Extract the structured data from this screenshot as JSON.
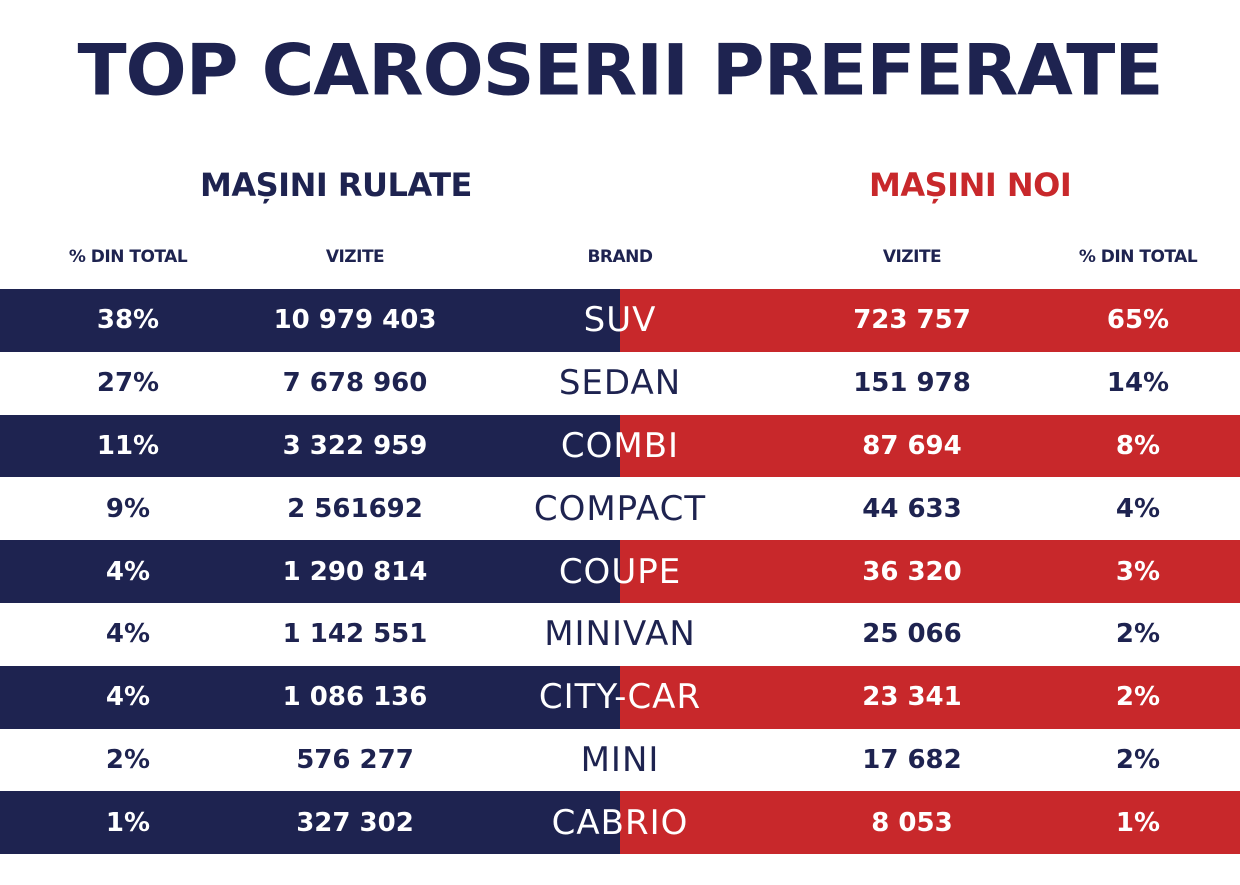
{
  "title": "TOP CAROSERII PREFERATE",
  "left_section": "MAȘINI RULATE",
  "right_section": "MAȘINI NOI",
  "headers": {
    "pct_left": "% DIN TOTAL",
    "visits_left": "VIZITE",
    "brand": "BRAND",
    "visits_right": "VIZITE",
    "pct_right": "% DIN TOTAL"
  },
  "colors": {
    "navy": "#1e2350",
    "red": "#c8282b"
  },
  "rows": [
    {
      "pct_used": "38%",
      "visits_used": "10 979 403",
      "brand": "SUV",
      "visits_new": "723 757",
      "pct_new": "65%"
    },
    {
      "pct_used": "27%",
      "visits_used": "7 678 960",
      "brand": "SEDAN",
      "visits_new": "151 978",
      "pct_new": "14%"
    },
    {
      "pct_used": "11%",
      "visits_used": "3 322 959",
      "brand": "COMBI",
      "visits_new": "87 694",
      "pct_new": "8%"
    },
    {
      "pct_used": "9%",
      "visits_used": "2 561692",
      "brand": "COMPACT",
      "visits_new": "44 633",
      "pct_new": "4%"
    },
    {
      "pct_used": "4%",
      "visits_used": "1 290 814",
      "brand": "COUPE",
      "visits_new": "36 320",
      "pct_new": "3%"
    },
    {
      "pct_used": "4%",
      "visits_used": "1 142 551",
      "brand": "MINIVAN",
      "visits_new": "25 066",
      "pct_new": "2%"
    },
    {
      "pct_used": "4%",
      "visits_used": "1 086 136",
      "brand": "CITY-CAR",
      "visits_new": "23 341",
      "pct_new": "2%"
    },
    {
      "pct_used": "2%",
      "visits_used": "576 277",
      "brand": "MINI",
      "visits_new": "17 682",
      "pct_new": "2%"
    },
    {
      "pct_used": "1%",
      "visits_used": "327 302",
      "brand": "CABRIO",
      "visits_new": "8 053",
      "pct_new": "1%"
    }
  ]
}
